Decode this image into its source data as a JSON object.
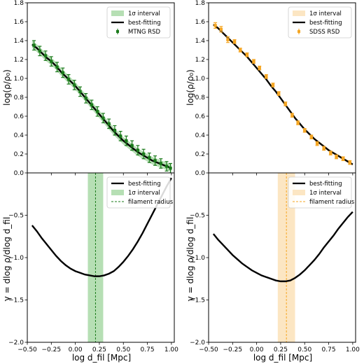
{
  "figure": {
    "xlabel": "log d_fil [Mpc]",
    "ylabel_top": "log(ρ/ρ₀)",
    "ylabel_bottom": "γ = dlog ρ/dlog d_fil"
  },
  "chart_data": [
    {
      "type": "line",
      "id": "top-left",
      "xlim": [
        -0.5,
        1.03
      ],
      "ylim": [
        0,
        1.8
      ],
      "yticks": [
        0,
        0.2,
        0.4,
        0.6,
        0.8,
        1.0,
        1.2,
        1.4,
        1.6,
        1.8
      ],
      "ytick_labels": [
        "0.0",
        "0.2",
        "0.4",
        "0.6",
        "0.8",
        "1.0",
        "1.2",
        "1.4",
        "1.6",
        "1.8"
      ],
      "legend": [
        "1σ interval",
        "best-fitting",
        "MTNG RSD"
      ],
      "colors": {
        "band": "#b6dfb4",
        "line": "#000000",
        "points": "#1a7a1a"
      },
      "points": {
        "x": [
          -0.43,
          -0.37,
          -0.31,
          -0.25,
          -0.19,
          -0.13,
          -0.07,
          -0.01,
          0.05,
          0.11,
          0.17,
          0.23,
          0.29,
          0.35,
          0.41,
          0.47,
          0.53,
          0.59,
          0.65,
          0.71,
          0.77,
          0.83,
          0.89,
          0.95,
          0.99
        ],
        "y": [
          1.35,
          1.29,
          1.24,
          1.18,
          1.12,
          1.06,
          0.99,
          0.93,
          0.86,
          0.79,
          0.72,
          0.65,
          0.58,
          0.52,
          0.45,
          0.39,
          0.34,
          0.29,
          0.24,
          0.2,
          0.16,
          0.13,
          0.1,
          0.07,
          0.05
        ],
        "err": [
          0.05,
          0.05,
          0.05,
          0.05,
          0.05,
          0.05,
          0.05,
          0.05,
          0.05,
          0.05,
          0.05,
          0.05,
          0.05,
          0.05,
          0.05,
          0.05,
          0.05,
          0.05,
          0.05,
          0.05,
          0.05,
          0.05,
          0.05,
          0.05,
          0.05
        ]
      },
      "fit": {
        "x": [
          -0.45,
          -0.4,
          -0.35,
          -0.3,
          -0.25,
          -0.2,
          -0.15,
          -0.1,
          -0.05,
          0.0,
          0.05,
          0.1,
          0.15,
          0.2,
          0.25,
          0.3,
          0.35,
          0.4,
          0.45,
          0.5,
          0.55,
          0.6,
          0.65,
          0.7,
          0.75,
          0.8,
          0.85,
          0.9,
          0.95,
          1.0
        ],
        "y": [
          1.36,
          1.32,
          1.27,
          1.22,
          1.18,
          1.13,
          1.07,
          1.02,
          0.97,
          0.92,
          0.86,
          0.8,
          0.74,
          0.68,
          0.62,
          0.56,
          0.5,
          0.44,
          0.39,
          0.34,
          0.3,
          0.26,
          0.22,
          0.19,
          0.16,
          0.13,
          0.11,
          0.09,
          0.07,
          0.05
        ]
      },
      "band_halfwidth": 0.04
    },
    {
      "type": "line",
      "id": "top-right",
      "xlim": [
        -0.5,
        1.03
      ],
      "ylim": [
        0,
        1.8
      ],
      "yticks": [
        0,
        0.2,
        0.4,
        0.6,
        0.8,
        1.0,
        1.2,
        1.4,
        1.6,
        1.8
      ],
      "ytick_labels": [
        "0.0",
        "0.2",
        "0.4",
        "0.6",
        "0.8",
        "1.0",
        "1.2",
        "1.4",
        "1.6",
        "1.8"
      ],
      "legend": [
        "1σ interval",
        "best-fitting",
        "SDSS RSD"
      ],
      "colors": {
        "band": "#fce6c3",
        "line": "#000000",
        "points": "#f5a623"
      },
      "points": {
        "x": [
          -0.43,
          -0.37,
          -0.3,
          -0.23,
          -0.17,
          -0.1,
          -0.03,
          0.03,
          0.1,
          0.17,
          0.23,
          0.3,
          0.37,
          0.43,
          0.5,
          0.57,
          0.63,
          0.7,
          0.77,
          0.83,
          0.9,
          0.97
        ],
        "y": [
          1.56,
          1.52,
          1.41,
          1.39,
          1.3,
          1.25,
          1.18,
          1.11,
          1.02,
          0.93,
          0.84,
          0.73,
          0.61,
          0.53,
          0.45,
          0.38,
          0.31,
          0.26,
          0.21,
          0.17,
          0.15,
          0.11
        ],
        "err": [
          0.03,
          0.03,
          0.03,
          0.02,
          0.02,
          0.02,
          0.02,
          0.02,
          0.02,
          0.02,
          0.02,
          0.02,
          0.02,
          0.02,
          0.02,
          0.02,
          0.02,
          0.02,
          0.02,
          0.02,
          0.02,
          0.02
        ]
      },
      "fit": {
        "x": [
          -0.45,
          -0.4,
          -0.35,
          -0.3,
          -0.25,
          -0.2,
          -0.15,
          -0.1,
          -0.05,
          0.0,
          0.05,
          0.1,
          0.15,
          0.2,
          0.25,
          0.3,
          0.35,
          0.4,
          0.45,
          0.5,
          0.55,
          0.6,
          0.65,
          0.7,
          0.75,
          0.8,
          0.85,
          0.9,
          0.95,
          1.0
        ],
        "y": [
          1.57,
          1.53,
          1.48,
          1.43,
          1.38,
          1.33,
          1.28,
          1.23,
          1.17,
          1.11,
          1.05,
          0.99,
          0.92,
          0.86,
          0.79,
          0.72,
          0.65,
          0.58,
          0.52,
          0.46,
          0.41,
          0.36,
          0.32,
          0.28,
          0.24,
          0.21,
          0.18,
          0.15,
          0.12,
          0.09
        ]
      },
      "band_halfwidth": 0.015
    },
    {
      "type": "line",
      "id": "bottom-left",
      "xlim": [
        -0.5,
        1.03
      ],
      "ylim": [
        -2.0,
        0
      ],
      "xticks": [
        -0.5,
        -0.25,
        0.0,
        0.25,
        0.5,
        0.75,
        1.0
      ],
      "xtick_labels": [
        "−0.50",
        "−0.25",
        "0.00",
        "0.25",
        "0.50",
        "0.75",
        "1.00"
      ],
      "yticks": [
        -2.0,
        -1.5,
        -1.0,
        -0.5
      ],
      "ytick_labels": [
        "−2.0",
        "−1.5",
        "−1.0",
        "−0.5"
      ],
      "legend": [
        "best-fitting",
        "1σ interval",
        "filament radius"
      ],
      "colors": {
        "band": "#b6dfb4",
        "line": "#000000",
        "radius": "#1a7a1a"
      },
      "curve": {
        "x": [
          -0.45,
          -0.4,
          -0.35,
          -0.3,
          -0.25,
          -0.2,
          -0.15,
          -0.1,
          -0.05,
          0.0,
          0.05,
          0.1,
          0.15,
          0.2,
          0.25,
          0.3,
          0.35,
          0.4,
          0.45,
          0.5,
          0.55,
          0.6,
          0.65,
          0.7,
          0.75,
          0.8,
          0.85,
          0.9,
          0.95,
          1.0
        ],
        "y": [
          -0.62,
          -0.69,
          -0.77,
          -0.84,
          -0.91,
          -0.98,
          -1.04,
          -1.09,
          -1.13,
          -1.16,
          -1.18,
          -1.2,
          -1.21,
          -1.22,
          -1.22,
          -1.21,
          -1.19,
          -1.16,
          -1.11,
          -1.05,
          -0.98,
          -0.9,
          -0.81,
          -0.71,
          -0.6,
          -0.49,
          -0.38,
          -0.27,
          -0.16,
          -0.06
        ]
      },
      "radius_band": [
        0.13,
        0.29
      ],
      "radius": 0.21
    },
    {
      "type": "line",
      "id": "bottom-right",
      "xlim": [
        -0.5,
        1.03
      ],
      "ylim": [
        -2.0,
        0
      ],
      "xticks": [
        -0.5,
        -0.25,
        0.0,
        0.25,
        0.5,
        0.75,
        1.0
      ],
      "xtick_labels": [
        "−0.50",
        "−0.25",
        "0.00",
        "0.25",
        "0.50",
        "0.75",
        "1.00"
      ],
      "yticks": [
        -2.0,
        -1.5,
        -1.0,
        -0.5
      ],
      "ytick_labels": [
        "−2.0",
        "−1.5",
        "−1.0",
        "−0.5"
      ],
      "legend": [
        "best-fitting",
        "1σ interval",
        "filament radius"
      ],
      "colors": {
        "band": "#fce6c3",
        "line": "#000000",
        "radius": "#f5a623"
      },
      "curve": {
        "x": [
          -0.45,
          -0.4,
          -0.35,
          -0.3,
          -0.25,
          -0.2,
          -0.15,
          -0.1,
          -0.05,
          0.0,
          0.05,
          0.1,
          0.15,
          0.2,
          0.25,
          0.3,
          0.35,
          0.4,
          0.45,
          0.5,
          0.55,
          0.6,
          0.65,
          0.7,
          0.75,
          0.8,
          0.85,
          0.9,
          0.95,
          1.0
        ],
        "y": [
          -0.72,
          -0.79,
          -0.85,
          -0.91,
          -0.97,
          -1.02,
          -1.07,
          -1.11,
          -1.15,
          -1.18,
          -1.21,
          -1.23,
          -1.25,
          -1.27,
          -1.28,
          -1.28,
          -1.27,
          -1.24,
          -1.2,
          -1.15,
          -1.09,
          -1.03,
          -0.96,
          -0.88,
          -0.81,
          -0.74,
          -0.66,
          -0.59,
          -0.52,
          -0.46
        ]
      },
      "radius_band": [
        0.22,
        0.4
      ],
      "radius": 0.31
    }
  ]
}
